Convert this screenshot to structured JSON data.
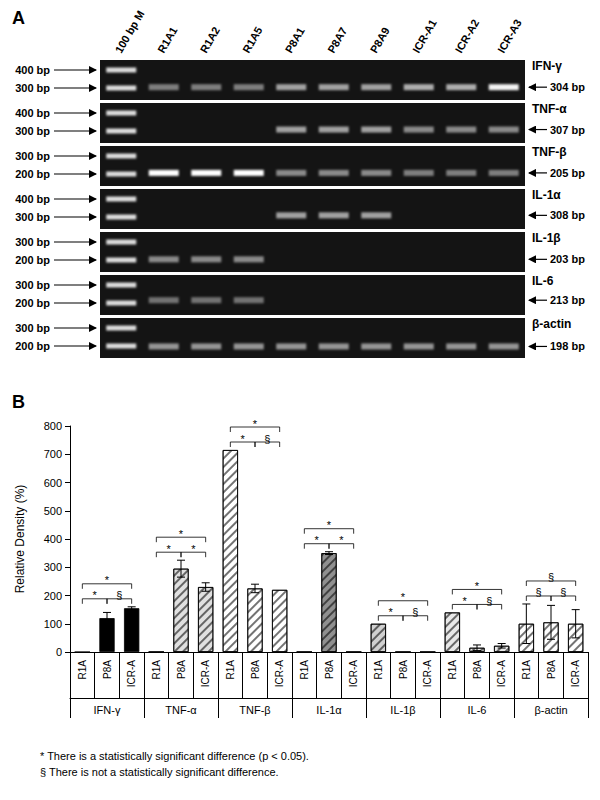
{
  "gel_panel": {
    "label": "A",
    "lanes": [
      "100 bp M",
      "R1A1",
      "R1A2",
      "R1A5",
      "P8A1",
      "P8A7",
      "P8A9",
      "ICR-A1",
      "ICR-A2",
      "ICR-A3"
    ],
    "rows": [
      {
        "gene": "IFN-γ",
        "markers": [
          {
            "value": 400,
            "label": "400 bp"
          },
          {
            "value": 300,
            "label": "300 bp"
          }
        ],
        "band": {
          "value": 304,
          "label": "304 bp"
        },
        "intensities": [
          0.45,
          0.45,
          0.45,
          0.6,
          0.6,
          0.6,
          0.65,
          0.65,
          0.95
        ]
      },
      {
        "gene": "TNF-α",
        "markers": [
          {
            "value": 400,
            "label": "400 bp"
          },
          {
            "value": 300,
            "label": "300 bp"
          }
        ],
        "band": {
          "value": 307,
          "label": "307 bp"
        },
        "intensities": [
          0,
          0,
          0,
          0.6,
          0.6,
          0.6,
          0.5,
          0.5,
          0.5
        ]
      },
      {
        "gene": "TNF-β",
        "markers": [
          {
            "value": 300,
            "label": "300 bp"
          },
          {
            "value": 200,
            "label": "200 bp"
          }
        ],
        "band": {
          "value": 205,
          "label": "205 bp"
        },
        "intensities": [
          1,
          1,
          1,
          0.5,
          0.5,
          0.5,
          0.45,
          0.45,
          0.45
        ]
      },
      {
        "gene": "IL-1α",
        "markers": [
          {
            "value": 400,
            "label": "400 bp"
          },
          {
            "value": 300,
            "label": "300 bp"
          }
        ],
        "band": {
          "value": 308,
          "label": "308 bp"
        },
        "intensities": [
          0,
          0,
          0,
          0.6,
          0.6,
          0.6,
          0,
          0,
          0
        ]
      },
      {
        "gene": "IL-1β",
        "markers": [
          {
            "value": 300,
            "label": "300 bp"
          },
          {
            "value": 200,
            "label": "200 bp"
          }
        ],
        "band": {
          "value": 203,
          "label": "203 bp"
        },
        "intensities": [
          0.5,
          0.5,
          0.5,
          0,
          0,
          0,
          0,
          0,
          0
        ]
      },
      {
        "gene": "IL-6",
        "markers": [
          {
            "value": 300,
            "label": "300 bp"
          },
          {
            "value": 200,
            "label": "200 bp"
          }
        ],
        "band": {
          "value": 213,
          "label": "213 bp"
        },
        "intensities": [
          0.4,
          0.4,
          0.4,
          0,
          0,
          0,
          0,
          0,
          0
        ]
      },
      {
        "gene": "β-actin",
        "markers": [
          {
            "value": 300,
            "label": "300 bp"
          },
          {
            "value": 200,
            "label": "200 bp"
          }
        ],
        "band": {
          "value": 198,
          "label": "198 bp"
        },
        "intensities": [
          0.55,
          0.55,
          0.55,
          0.55,
          0.55,
          0.55,
          0.55,
          0.55,
          0.55
        ]
      }
    ]
  },
  "chart_data": {
    "type": "bar",
    "label": "B",
    "y_label": "Relative Density (%)",
    "ylim": [
      0,
      800
    ],
    "yticks": [
      0,
      100,
      200,
      300,
      400,
      500,
      600,
      700,
      800
    ],
    "grid": false,
    "groups": [
      {
        "name": "IFN-γ",
        "color": "#000000",
        "categories": [
          "R1A",
          "P8A",
          "ICR-A"
        ],
        "values": [
          0,
          120,
          155
        ],
        "errors": [
          null,
          20,
          5
        ],
        "comparisons": [
          {
            "pair": [
              "R1A",
              "P8A"
            ],
            "mark": "*"
          },
          {
            "pair": [
              "R1A",
              "ICR-A"
            ],
            "mark": "*"
          },
          {
            "pair": [
              "P8A",
              "ICR-A"
            ],
            "mark": "§"
          }
        ]
      },
      {
        "name": "TNF-α",
        "color": "#e0e0e0",
        "categories": [
          "R1A",
          "P8A",
          "ICR-A"
        ],
        "values": [
          0,
          295,
          230
        ],
        "errors": [
          null,
          30,
          15
        ],
        "comparisons": [
          {
            "pair": [
              "R1A",
              "P8A"
            ],
            "mark": "*"
          },
          {
            "pair": [
              "R1A",
              "ICR-A"
            ],
            "mark": "*"
          },
          {
            "pair": [
              "P8A",
              "ICR-A"
            ],
            "mark": "*"
          }
        ]
      },
      {
        "name": "TNF-β",
        "color": "#ffffff",
        "categories": [
          "R1A",
          "P8A",
          "ICR-A"
        ],
        "values": [
          715,
          225,
          220
        ],
        "errors": [
          null,
          15,
          null
        ],
        "comparisons": [
          {
            "pair": [
              "R1A",
              "P8A"
            ],
            "mark": "*"
          },
          {
            "pair": [
              "R1A",
              "ICR-A"
            ],
            "mark": "*"
          },
          {
            "pair": [
              "P8A",
              "ICR-A"
            ],
            "mark": "§"
          }
        ]
      },
      {
        "name": "IL-1α",
        "color": "#909090",
        "categories": [
          "R1A",
          "P8A",
          "ICR-A"
        ],
        "values": [
          0,
          350,
          0
        ],
        "errors": [
          null,
          5,
          null
        ],
        "comparisons": [
          {
            "pair": [
              "R1A",
              "P8A"
            ],
            "mark": "*"
          },
          {
            "pair": [
              "R1A",
              "ICR-A"
            ],
            "mark": "*"
          },
          {
            "pair": [
              "P8A",
              "ICR-A"
            ],
            "mark": "*"
          }
        ]
      },
      {
        "name": "IL-1β",
        "color": "#d0d0d0",
        "categories": [
          "R1A",
          "P8A",
          "ICR-A"
        ],
        "values": [
          100,
          0,
          0
        ],
        "errors": [
          null,
          null,
          null
        ],
        "comparisons": [
          {
            "pair": [
              "R1A",
              "P8A"
            ],
            "mark": "*"
          },
          {
            "pair": [
              "R1A",
              "ICR-A"
            ],
            "mark": "*"
          },
          {
            "pair": [
              "P8A",
              "ICR-A"
            ],
            "mark": "§"
          }
        ]
      },
      {
        "name": "IL-6",
        "color": "#e8e8e8",
        "categories": [
          "R1A",
          "P8A",
          "ICR-A"
        ],
        "values": [
          140,
          15,
          22
        ],
        "errors": [
          null,
          10,
          8
        ],
        "comparisons": [
          {
            "pair": [
              "R1A",
              "P8A"
            ],
            "mark": "*"
          },
          {
            "pair": [
              "R1A",
              "ICR-A"
            ],
            "mark": "*"
          },
          {
            "pair": [
              "P8A",
              "ICR-A"
            ],
            "mark": "§"
          }
        ]
      },
      {
        "name": "β-actin",
        "color": "#ffffff",
        "categories": [
          "R1A",
          "P8A",
          "ICR-A"
        ],
        "values": [
          100,
          105,
          100
        ],
        "errors": [
          70,
          60,
          50
        ],
        "comparisons": [
          {
            "pair": [
              "R1A",
              "P8A"
            ],
            "mark": "§"
          },
          {
            "pair": [
              "R1A",
              "ICR-A"
            ],
            "mark": "§"
          },
          {
            "pair": [
              "P8A",
              "ICR-A"
            ],
            "mark": "§"
          }
        ]
      }
    ],
    "footnotes": [
      "* There is a statistically significant difference (p < 0.05).",
      "§ There is not a statistically significant difference."
    ]
  }
}
